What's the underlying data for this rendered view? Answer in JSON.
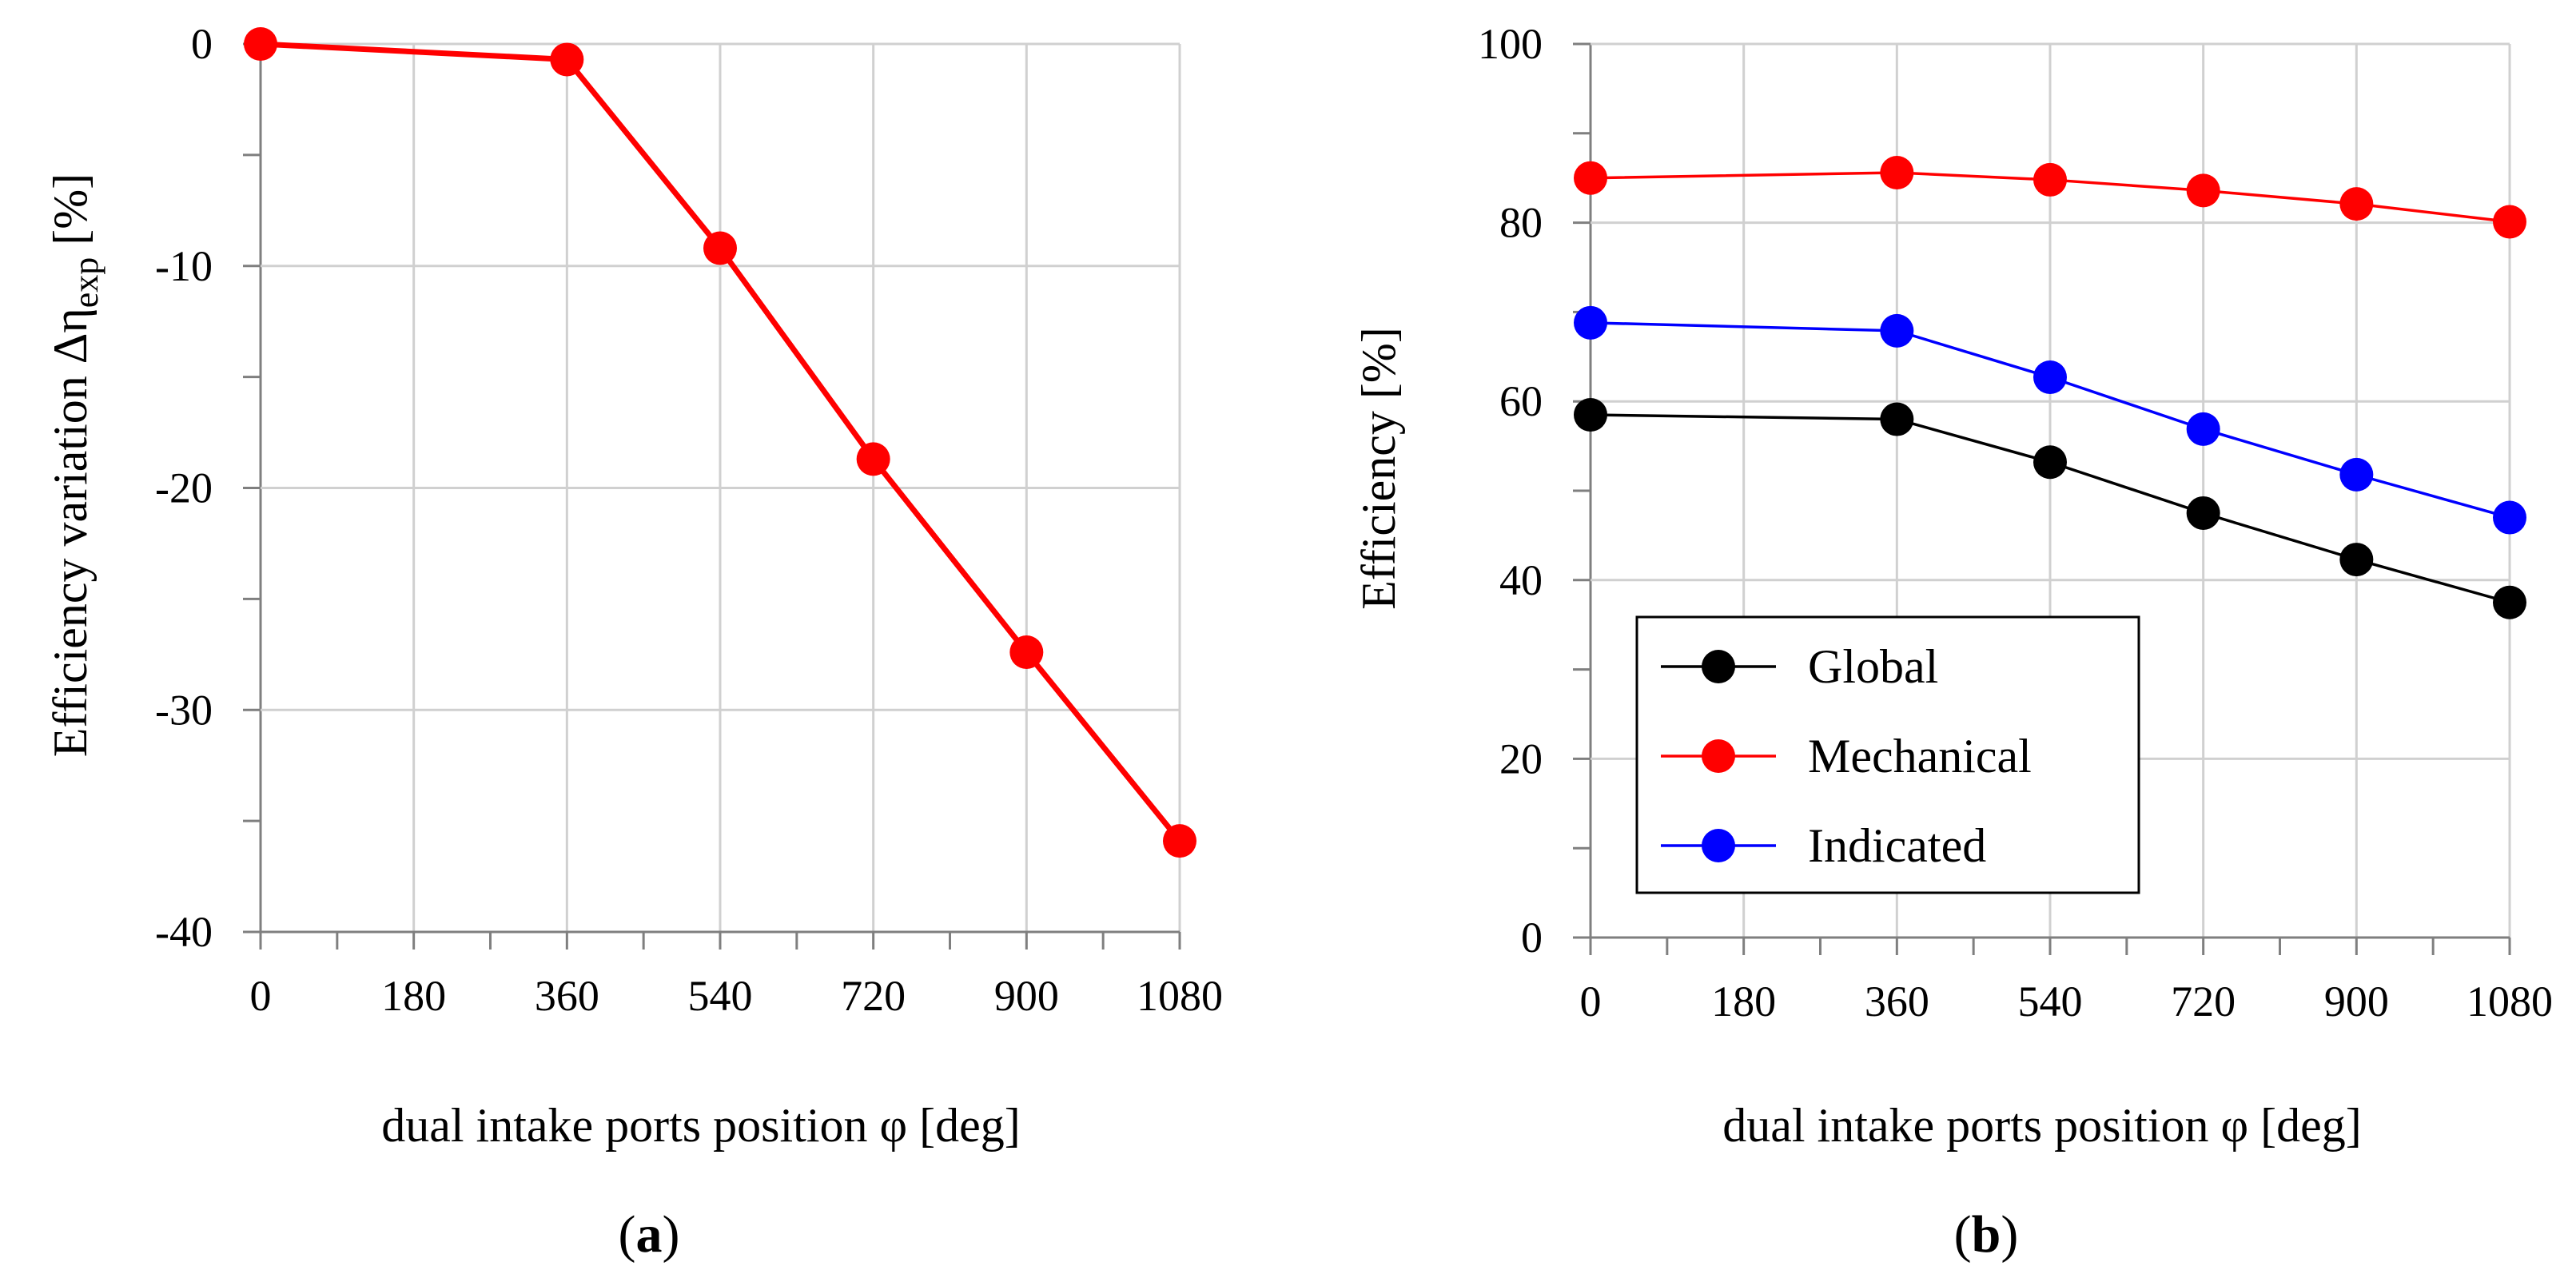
{
  "chart_data": [
    {
      "type": "line",
      "panel_label": "a",
      "ylabel_main": "Efficiency variation Δη",
      "ylabel_subscript": "exp",
      "ylabel_tail": " [%]",
      "xlabel": "dual intake ports position φ [deg]",
      "x_ticks": [
        "0",
        "180",
        "360",
        "540",
        "720",
        "900",
        "1080"
      ],
      "y_ticks": [
        "0",
        "-10",
        "-20",
        "-30",
        "-40"
      ],
      "xlim": [
        0,
        1080
      ],
      "ylim": [
        -40,
        0
      ],
      "x_minor_ticks": [
        90,
        270,
        450,
        630,
        810,
        990
      ],
      "y_minor_ticks": [
        -5,
        -15,
        -25,
        -35
      ],
      "grid": true,
      "series": [
        {
          "name": "Efficiency variation",
          "color": "#ff0000",
          "x": [
            0,
            360,
            540,
            720,
            900,
            1080
          ],
          "y": [
            0,
            -0.7,
            -9.2,
            -18.7,
            -27.4,
            -35.9
          ]
        }
      ]
    },
    {
      "type": "line",
      "panel_label": "b",
      "ylabel": "Efficiency [%]",
      "xlabel": "dual intake ports position φ [deg]",
      "x_ticks": [
        "0",
        "180",
        "360",
        "540",
        "720",
        "900",
        "1080"
      ],
      "y_ticks": [
        "0",
        "20",
        "40",
        "60",
        "80",
        "100"
      ],
      "xlim": [
        0,
        1080
      ],
      "ylim": [
        0,
        100
      ],
      "x_minor_ticks": [
        90,
        270,
        450,
        630,
        810,
        990
      ],
      "y_minor_ticks": [
        10,
        30,
        50,
        70,
        90
      ],
      "grid": true,
      "legend_position": "bottom-left",
      "series": [
        {
          "name": "Global",
          "color": "#000000",
          "x": [
            0,
            360,
            540,
            720,
            900,
            1080
          ],
          "y": [
            58.5,
            58.0,
            53.2,
            47.5,
            42.3,
            37.5
          ]
        },
        {
          "name": "Mechanical",
          "color": "#ff0000",
          "x": [
            0,
            360,
            540,
            720,
            900,
            1080
          ],
          "y": [
            85.0,
            85.6,
            84.8,
            83.6,
            82.1,
            80.1
          ]
        },
        {
          "name": "Indicated",
          "color": "#0000ff",
          "x": [
            0,
            360,
            540,
            720,
            900,
            1080
          ],
          "y": [
            68.8,
            67.9,
            62.7,
            56.9,
            51.8,
            47.0
          ]
        }
      ]
    }
  ]
}
